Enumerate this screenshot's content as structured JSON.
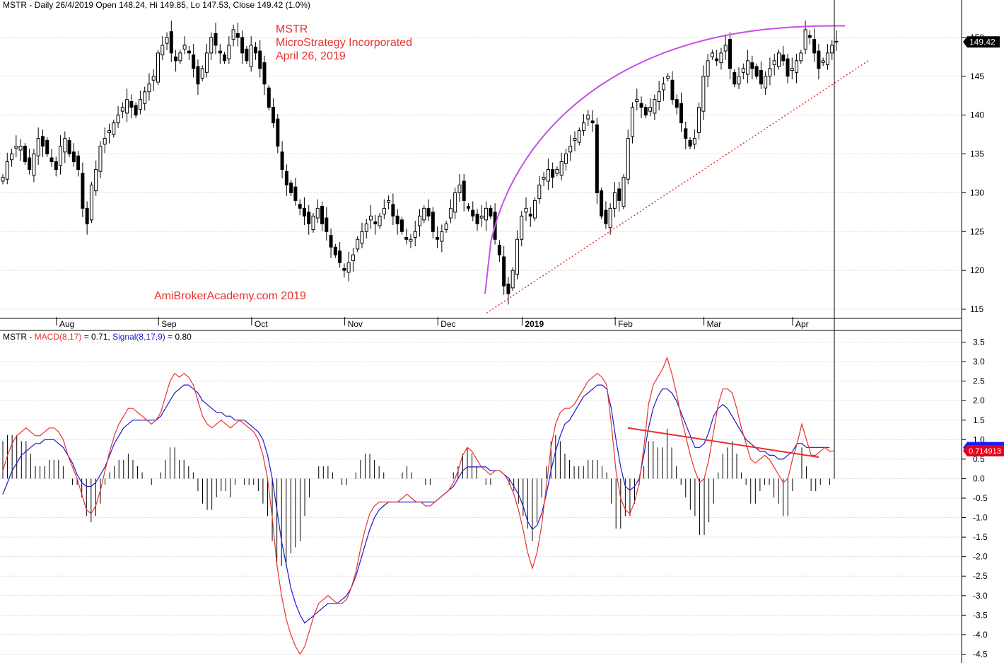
{
  "header": {
    "price_text": "MSTR - Daily 26/4/2019 Open 148.24, Hi 149.85, Lo 147.53, Close 149.42 (1.0%)",
    "macd_symbol": "MSTR - ",
    "macd_label": "MACD(8,17)",
    "macd_value": " = 0.71, ",
    "signal_label": "Signal(8,17,9)",
    "signal_value": " = 0.80"
  },
  "annotations": {
    "title_line1": "MSTR",
    "title_line2": "MicroStrategy Incorporated",
    "title_line3": "April 26, 2019",
    "watermark": "AmiBrokerAcademy.com   2019"
  },
  "colors": {
    "up_candle": "#ffffff",
    "down_candle": "#000000",
    "macd_line": "#e8312e",
    "signal_line": "#1a1acc",
    "arc": "#c84ee8",
    "trendline": "#e8312e",
    "grid": "#d8d8d8"
  },
  "chart_data": [
    {
      "type": "candlestick",
      "title": "MSTR - Daily 26/4/2019",
      "ylim": [
        114,
        153
      ],
      "y_ticks": [
        115,
        120,
        125,
        130,
        135,
        140,
        145,
        150
      ],
      "x_month_labels": [
        "Aug",
        "Sep",
        "Oct",
        "Nov",
        "Dec",
        "2019",
        "Feb",
        "Mar",
        "Apr"
      ],
      "last_close": "149.42",
      "closes": [
        132,
        134,
        135,
        136,
        136,
        134,
        133,
        135,
        137,
        136,
        135,
        134,
        133,
        136,
        137,
        135,
        134,
        133,
        128,
        126,
        131,
        133,
        136,
        137,
        138,
        139,
        140,
        141,
        142,
        141,
        140,
        142,
        143,
        144,
        145,
        148,
        149,
        150,
        148,
        147,
        148,
        149,
        148,
        146,
        144,
        146,
        148,
        150,
        149,
        148,
        147,
        149,
        151,
        150,
        148,
        147,
        149,
        148,
        146,
        144,
        141,
        139,
        136,
        133,
        131,
        130,
        129,
        128,
        127,
        126,
        127,
        128,
        126,
        125,
        123,
        122,
        121,
        120,
        121,
        122,
        124,
        125,
        126,
        127,
        126,
        127,
        128,
        129,
        127,
        126,
        125,
        124,
        124,
        125,
        127,
        128,
        127,
        125,
        124,
        125,
        126,
        128,
        130,
        131,
        129,
        128,
        127,
        126,
        127,
        128,
        127,
        124,
        122,
        118,
        117,
        120,
        124,
        127,
        128,
        127,
        129,
        131,
        132,
        133,
        132,
        133,
        134,
        135,
        136,
        137,
        138,
        139,
        140,
        139,
        130,
        127,
        126,
        128,
        130,
        129,
        132,
        137,
        141,
        142,
        141,
        140,
        141,
        142,
        143,
        144,
        145,
        142,
        141,
        139,
        137,
        136,
        137,
        141,
        145,
        147,
        148,
        147,
        148,
        149,
        146,
        144,
        145,
        146,
        147,
        146,
        145,
        144,
        145,
        146,
        147,
        148,
        147,
        145,
        146,
        147,
        148,
        151,
        150,
        148,
        146,
        147,
        148,
        149,
        149.42
      ],
      "arc_label": "rounded top (purple)",
      "trendline_label": "rising support (dotted red)"
    },
    {
      "type": "line",
      "title": "MACD(8,17) Signal(8,17,9)",
      "ylim": [
        -4.6,
        3.6
      ],
      "y_ticks": [
        -4.5,
        -4.0,
        -3.5,
        -3.0,
        -2.5,
        -2.0,
        -1.5,
        -1.0,
        -0.5,
        0.0,
        0.5,
        1.0,
        1.5,
        2.0,
        2.5,
        3.0,
        3.5
      ],
      "series": [
        {
          "name": "MACD(8,17)",
          "current": "0.714913",
          "values": [
            0.2,
            0.6,
            0.9,
            1.1,
            1.2,
            1.3,
            1.2,
            1.1,
            1.1,
            1.2,
            1.3,
            1.3,
            1.2,
            1.0,
            0.6,
            0.3,
            0.0,
            -0.4,
            -0.8,
            -0.9,
            -0.7,
            -0.3,
            0.2,
            0.7,
            1.1,
            1.4,
            1.6,
            1.8,
            1.8,
            1.7,
            1.6,
            1.5,
            1.4,
            1.5,
            1.7,
            2.1,
            2.5,
            2.7,
            2.6,
            2.7,
            2.6,
            2.4,
            2.0,
            1.6,
            1.4,
            1.3,
            1.4,
            1.5,
            1.4,
            1.3,
            1.4,
            1.5,
            1.4,
            1.3,
            1.2,
            1.0,
            0.6,
            0.0,
            -1.0,
            -2.2,
            -3.0,
            -3.6,
            -4.0,
            -4.3,
            -4.5,
            -4.3,
            -3.9,
            -3.5,
            -3.2,
            -3.1,
            -3.0,
            -3.1,
            -3.2,
            -3.2,
            -3.1,
            -2.8,
            -2.4,
            -1.8,
            -1.3,
            -0.9,
            -0.7,
            -0.6,
            -0.6,
            -0.6,
            -0.6,
            -0.6,
            -0.5,
            -0.4,
            -0.5,
            -0.6,
            -0.6,
            -0.7,
            -0.7,
            -0.6,
            -0.5,
            -0.4,
            -0.3,
            -0.1,
            0.2,
            0.6,
            0.8,
            0.7,
            0.5,
            0.3,
            0.2,
            0.1,
            0.2,
            0.2,
            0.1,
            -0.1,
            -0.4,
            -0.8,
            -1.3,
            -1.9,
            -2.3,
            -1.9,
            -1.2,
            -0.2,
            0.8,
            1.4,
            1.7,
            1.8,
            1.8,
            1.9,
            2.1,
            2.3,
            2.5,
            2.6,
            2.7,
            2.6,
            2.4,
            1.4,
            0.2,
            -0.5,
            -0.8,
            -0.9,
            -0.6,
            -0.1,
            0.8,
            1.9,
            2.4,
            2.6,
            2.8,
            3.1,
            2.7,
            2.2,
            1.6,
            1.1,
            0.6,
            0.2,
            -0.1,
            0.0,
            0.5,
            1.2,
            1.9,
            2.3,
            2.3,
            2.2,
            1.8,
            1.3,
            0.9,
            0.5,
            0.4,
            0.5,
            0.6,
            0.5,
            0.3,
            0.1,
            -0.1,
            0.0,
            0.5,
            0.9,
            1.4,
            1.0,
            0.6,
            0.6,
            0.7,
            0.8,
            0.7,
            0.71
          ]
        },
        {
          "name": "Signal(8,17,9)",
          "current": "0.795897",
          "values": [
            -0.4,
            -0.1,
            0.2,
            0.4,
            0.6,
            0.7,
            0.8,
            0.9,
            0.9,
            1.0,
            1.0,
            1.0,
            0.9,
            0.8,
            0.6,
            0.4,
            0.1,
            -0.1,
            -0.2,
            -0.2,
            -0.1,
            0.1,
            0.3,
            0.6,
            0.9,
            1.1,
            1.3,
            1.4,
            1.5,
            1.5,
            1.5,
            1.5,
            1.5,
            1.5,
            1.6,
            1.8,
            2.0,
            2.2,
            2.3,
            2.4,
            2.4,
            2.3,
            2.2,
            2.0,
            1.9,
            1.8,
            1.7,
            1.7,
            1.6,
            1.6,
            1.5,
            1.5,
            1.5,
            1.4,
            1.3,
            1.2,
            1.0,
            0.6,
            0.0,
            -0.8,
            -1.6,
            -2.2,
            -2.8,
            -3.2,
            -3.5,
            -3.7,
            -3.6,
            -3.5,
            -3.4,
            -3.3,
            -3.2,
            -3.2,
            -3.2,
            -3.1,
            -3.0,
            -2.8,
            -2.5,
            -2.1,
            -1.7,
            -1.3,
            -1.0,
            -0.8,
            -0.7,
            -0.6,
            -0.6,
            -0.6,
            -0.6,
            -0.6,
            -0.6,
            -0.6,
            -0.6,
            -0.6,
            -0.6,
            -0.6,
            -0.5,
            -0.4,
            -0.3,
            -0.2,
            0.0,
            0.2,
            0.3,
            0.3,
            0.3,
            0.3,
            0.3,
            0.2,
            0.2,
            0.2,
            0.1,
            0.0,
            -0.2,
            -0.4,
            -0.7,
            -1.1,
            -1.3,
            -1.2,
            -0.9,
            -0.4,
            0.2,
            0.7,
            1.1,
            1.4,
            1.5,
            1.7,
            1.9,
            2.1,
            2.2,
            2.3,
            2.4,
            2.4,
            2.3,
            1.8,
            1.0,
            0.3,
            -0.2,
            -0.3,
            -0.2,
            0.0,
            0.6,
            1.3,
            1.8,
            2.1,
            2.3,
            2.3,
            2.2,
            2.0,
            1.7,
            1.4,
            1.1,
            0.8,
            0.8,
            0.9,
            1.2,
            1.6,
            1.8,
            1.9,
            1.8,
            1.6,
            1.4,
            1.2,
            1.0,
            0.9,
            0.8,
            0.7,
            0.7,
            0.6,
            0.6,
            0.5,
            0.5,
            0.6,
            0.7,
            0.9,
            0.9,
            0.8,
            0.8,
            0.8,
            0.8,
            0.8,
            0.8
          ]
        }
      ]
    }
  ]
}
